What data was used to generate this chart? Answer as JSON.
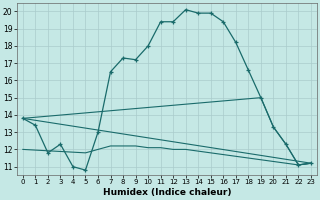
{
  "xlabel": "Humidex (Indice chaleur)",
  "bg_color": "#c5e8e5",
  "grid_color": "#aacccc",
  "line_color": "#1a6b6b",
  "xlim": [
    -0.5,
    23.5
  ],
  "ylim": [
    10.5,
    20.5
  ],
  "xticks": [
    0,
    1,
    2,
    3,
    4,
    5,
    6,
    7,
    8,
    9,
    10,
    11,
    12,
    13,
    14,
    15,
    16,
    17,
    18,
    19,
    20,
    21,
    22,
    23
  ],
  "yticks": [
    11,
    12,
    13,
    14,
    15,
    16,
    17,
    18,
    19,
    20
  ],
  "line1_x": [
    0,
    1,
    2,
    3,
    4,
    5,
    6,
    7,
    8,
    9,
    10,
    11,
    12,
    13,
    14,
    15,
    16,
    17,
    18,
    19,
    20,
    21,
    22,
    23
  ],
  "line1_y": [
    13.8,
    13.4,
    11.8,
    12.3,
    11.0,
    10.8,
    13.0,
    16.5,
    17.3,
    17.2,
    18.0,
    19.4,
    19.4,
    20.1,
    19.9,
    19.9,
    19.4,
    18.2,
    16.6,
    15.0,
    13.3,
    12.3,
    11.1,
    11.2
  ],
  "line2_x": [
    0,
    19,
    20,
    21,
    22,
    23
  ],
  "line2_y": [
    13.8,
    15.0,
    13.3,
    12.3,
    11.1,
    11.2
  ],
  "line3_x": [
    0,
    23
  ],
  "line3_y": [
    13.8,
    11.2
  ],
  "line4_x": [
    0,
    5,
    6,
    7,
    8,
    9,
    10,
    11,
    12,
    13,
    14,
    15,
    16,
    17,
    18,
    19,
    20,
    21,
    22,
    23
  ],
  "line4_y": [
    12.0,
    11.8,
    12.0,
    12.2,
    12.2,
    12.2,
    12.1,
    12.1,
    12.0,
    12.0,
    11.9,
    11.8,
    11.7,
    11.6,
    11.5,
    11.4,
    11.3,
    11.2,
    11.1,
    11.2
  ]
}
